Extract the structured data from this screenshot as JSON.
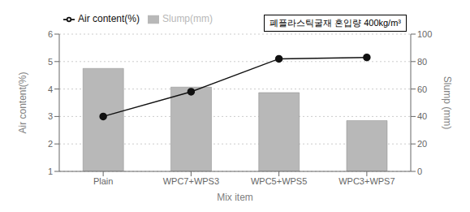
{
  "chart_data": {
    "type": "bar",
    "categories": [
      "Plain",
      "WPC7+WPS3",
      "WPC5+WPS5",
      "WPC3+WPS7"
    ],
    "xlabel": "Mix item",
    "ylabel": "Air content(%)",
    "y2label": "Slump (mm)",
    "ylim": [
      1,
      6
    ],
    "yticks": [
      1,
      2,
      3,
      4,
      5,
      6
    ],
    "y2lim": [
      0,
      100
    ],
    "y2ticks": [
      0,
      20,
      40,
      60,
      80,
      100
    ],
    "series": [
      {
        "name": "Slump(mm)",
        "type": "bar",
        "color": "#b8b8b8",
        "values": [
          4.75,
          4.07,
          3.87,
          2.85
        ]
      },
      {
        "name": "Air content(%)",
        "type": "line",
        "color": "#111111",
        "marker": "circle",
        "axis": "y2",
        "values": [
          40,
          58,
          82,
          83
        ]
      }
    ],
    "annotation": "폐플라스틱굴재 혼입량 400kg/m³",
    "grid": true,
    "legend": "upper left"
  }
}
